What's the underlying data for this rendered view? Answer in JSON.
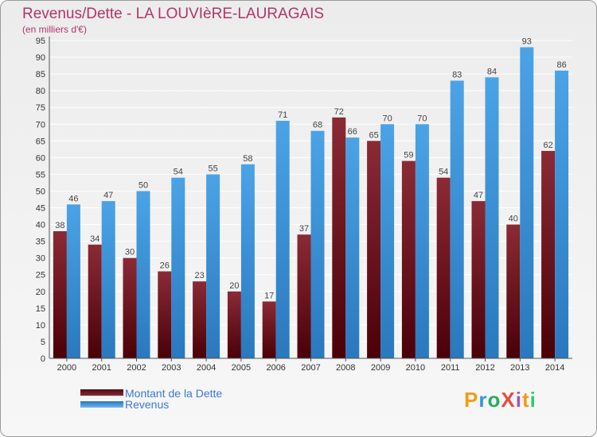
{
  "header": {
    "title": "Revenus/Dette - LA LOUVIèRE-LAURAGAIS",
    "subtitle": "(en milliers d'€)"
  },
  "legend": {
    "dette_label": "Montant de la Dette",
    "revenus_label": "Revenus"
  },
  "logo": {
    "text": "ProXiti",
    "letters": [
      "P",
      "r",
      "o",
      "X",
      "i",
      "t",
      "i"
    ],
    "colors": [
      "#f39c12",
      "#3498db",
      "#27ae60",
      "#e74c3c",
      "#9b59b6",
      "#f39c12",
      "#2ecc71"
    ]
  },
  "colors": {
    "dette": "#7a1f2a",
    "revenus": "#3d95db",
    "title": "#b0356a",
    "legend_text": "#3c78d8",
    "grid": "#ffffff"
  },
  "chart_data": {
    "type": "bar",
    "categories": [
      "2000",
      "2001",
      "2002",
      "2003",
      "2004",
      "2005",
      "2006",
      "2007",
      "2008",
      "2009",
      "2010",
      "2011",
      "2012",
      "2013",
      "2014"
    ],
    "series": [
      {
        "name": "Montant de la Dette",
        "values": [
          38,
          34,
          30,
          26,
          23,
          20,
          17,
          37,
          72,
          65,
          59,
          54,
          47,
          40,
          62
        ]
      },
      {
        "name": "Revenus",
        "values": [
          46,
          47,
          50,
          54,
          55,
          58,
          71,
          68,
          66,
          70,
          70,
          83,
          84,
          93,
          86
        ]
      }
    ],
    "title": "Revenus/Dette - LA LOUVIèRE-LAURAGAIS",
    "ylabel": "(en milliers d'€)",
    "xlabel": "",
    "ylim": [
      0,
      95
    ],
    "yticks": [
      0,
      5,
      10,
      15,
      20,
      25,
      30,
      35,
      40,
      45,
      50,
      55,
      60,
      65,
      70,
      75,
      80,
      85,
      90,
      95
    ],
    "grid": true,
    "legend_position": "bottom-left"
  }
}
